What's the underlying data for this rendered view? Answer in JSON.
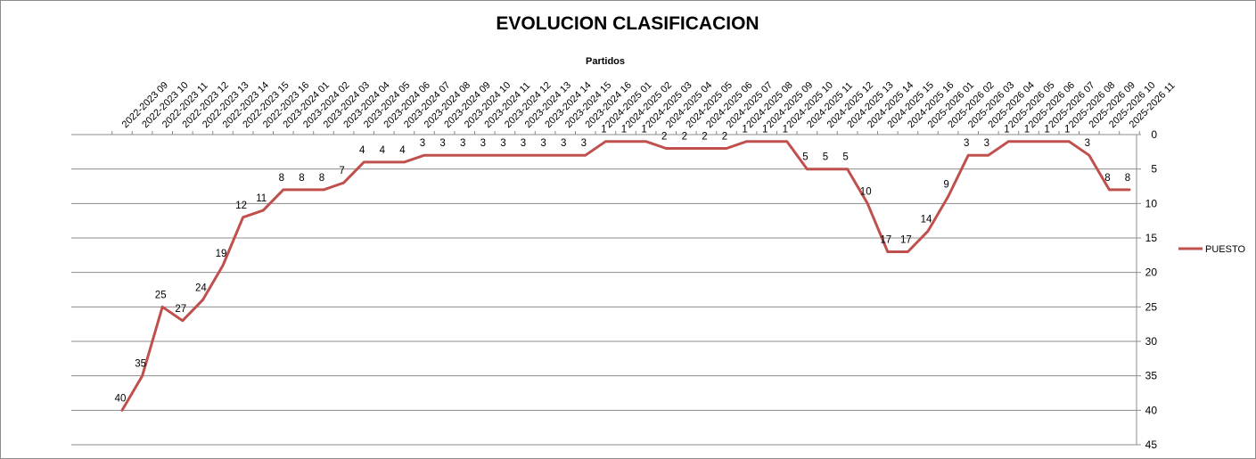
{
  "chart_data": {
    "type": "line",
    "title": "EVOLUCION CLASIFICACION",
    "xlabel": "Partidos",
    "ylabel": "",
    "categories": [
      "2022-2023 09",
      "2022-2023 10",
      "2022-2023 11",
      "2022-2023 12",
      "2022-2023 13",
      "2022-2023 14",
      "2022-2023 15",
      "2022-2023 16",
      "2023-2024 01",
      "2023-2024 02",
      "2023-2024 03",
      "2023-2024 04",
      "2023-2024 05",
      "2023-2024 06",
      "2023-2024 07",
      "2023-2024 08",
      "2023-2024 09",
      "2023-2024 10",
      "2023-2024 11",
      "2023-2024 12",
      "2023-2024 13",
      "2023-2024 14",
      "2023-2024 15",
      "2023-2024 16",
      "2024-2025 01",
      "2024-2025 02",
      "2024-2025 03",
      "2024-2025 04",
      "2024-2025 05",
      "2024-2025 06",
      "2024-2025 07",
      "2024-2025 08",
      "2024-2025 09",
      "2024-2025 10",
      "2024-2025 11",
      "2024-2025 12",
      "2024-2025 13",
      "2024-2025 14",
      "2024-2025 15",
      "2024-2025 16",
      "2025-2026 01",
      "2025-2026 02",
      "2025-2026 03",
      "2025-2026 04",
      "2025-2026 05",
      "2025-2026 06",
      "2025-2026 07",
      "2025-2026 08",
      "2025-2026 09",
      "2025-2026 10",
      "2025-2026 11"
    ],
    "series": [
      {
        "name": "PUESTO",
        "color": "#c0504d",
        "values": [
          40,
          35,
          25,
          27,
          24,
          19,
          12,
          11,
          8,
          8,
          8,
          7,
          4,
          4,
          4,
          3,
          3,
          3,
          3,
          3,
          3,
          3,
          3,
          3,
          1,
          1,
          1,
          2,
          2,
          2,
          2,
          1,
          1,
          1,
          5,
          5,
          5,
          10,
          17,
          17,
          14,
          9,
          3,
          3,
          1,
          1,
          1,
          1,
          3,
          8,
          8
        ]
      }
    ],
    "ylim": [
      0,
      45
    ],
    "yticks": [
      0,
      5,
      10,
      15,
      20,
      25,
      30,
      35,
      40,
      45
    ],
    "y_reversed": true,
    "y_axis_side": "right",
    "x_axis_position": "top",
    "grid": "horizontal",
    "legend": "right",
    "data_labels": true
  }
}
